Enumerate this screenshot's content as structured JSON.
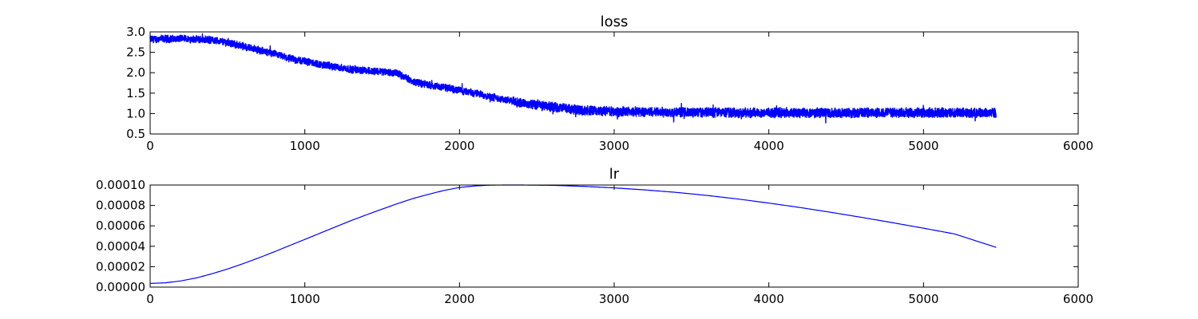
{
  "chart_data": [
    {
      "type": "line",
      "title": "loss",
      "xlabel": "",
      "ylabel": "",
      "xlim": [
        0,
        6000
      ],
      "ylim": [
        0.5,
        3.0
      ],
      "xticks": [
        0,
        1000,
        2000,
        3000,
        4000,
        5000,
        6000
      ],
      "yticks": [
        "0.5",
        "1.0",
        "1.5",
        "2.0",
        "2.5",
        "3.0"
      ],
      "grid": false,
      "line_color": "#0000ff",
      "noise": "high-frequency jitter of about ±0.12 around the trend",
      "series": [
        {
          "x": [
            0,
            100,
            200,
            300,
            400,
            500,
            600,
            700,
            800,
            900,
            1000,
            1100,
            1200,
            1300,
            1400,
            1500,
            1600,
            1700,
            1800,
            1900,
            2000,
            2100,
            2200,
            2300,
            2400,
            2500,
            2600,
            2700,
            2800,
            3000,
            3500,
            4000,
            4500,
            5000,
            5470
          ],
          "values": [
            2.82,
            2.83,
            2.83,
            2.82,
            2.8,
            2.74,
            2.65,
            2.56,
            2.46,
            2.35,
            2.28,
            2.2,
            2.14,
            2.08,
            2.05,
            2.03,
            1.98,
            1.78,
            1.7,
            1.64,
            1.57,
            1.5,
            1.42,
            1.33,
            1.26,
            1.2,
            1.16,
            1.12,
            1.08,
            1.05,
            1.03,
            1.02,
            1.02,
            1.02,
            1.02
          ]
        }
      ]
    },
    {
      "type": "line",
      "title": "lr",
      "xlabel": "",
      "ylabel": "",
      "xlim": [
        0,
        6000
      ],
      "ylim": [
        0,
        0.0001
      ],
      "xticks": [
        0,
        1000,
        2000,
        3000,
        4000,
        5000,
        6000
      ],
      "yticks": [
        "0.00000",
        "0.00002",
        "0.00004",
        "0.00006",
        "0.00008",
        "0.00010"
      ],
      "grid": false,
      "line_color": "#0000ff",
      "series": [
        {
          "x": [
            0,
            100,
            200,
            300,
            400,
            500,
            600,
            700,
            800,
            900,
            1000,
            1100,
            1200,
            1300,
            1400,
            1500,
            1600,
            1700,
            1800,
            1900,
            2000,
            2100,
            2200,
            2300,
            2400,
            2600,
            2800,
            3000,
            3200,
            3400,
            3600,
            3800,
            4000,
            4200,
            4400,
            4600,
            4800,
            5000,
            5200,
            5470
          ],
          "values": [
            3.6e-06,
            4.2e-06,
            6.1e-06,
            9e-06,
            1.31e-05,
            1.77e-05,
            2.29e-05,
            2.85e-05,
            3.44e-05,
            4.06e-05,
            4.67e-05,
            5.29e-05,
            5.91e-05,
            6.52e-05,
            7.09e-05,
            7.64e-05,
            8.18e-05,
            8.68e-05,
            9.09e-05,
            9.47e-05,
            9.76e-05,
            9.91e-05,
            9.99e-05,
            0.0001,
            0.0001,
            9.97e-05,
            9.87e-05,
            9.72e-05,
            9.52e-05,
            9.28e-05,
            8.98e-05,
            8.63e-05,
            8.23e-05,
            7.8e-05,
            7.33e-05,
            6.83e-05,
            6.31e-05,
            5.77e-05,
            5.21e-05,
            3.89e-05
          ]
        }
      ]
    }
  ]
}
